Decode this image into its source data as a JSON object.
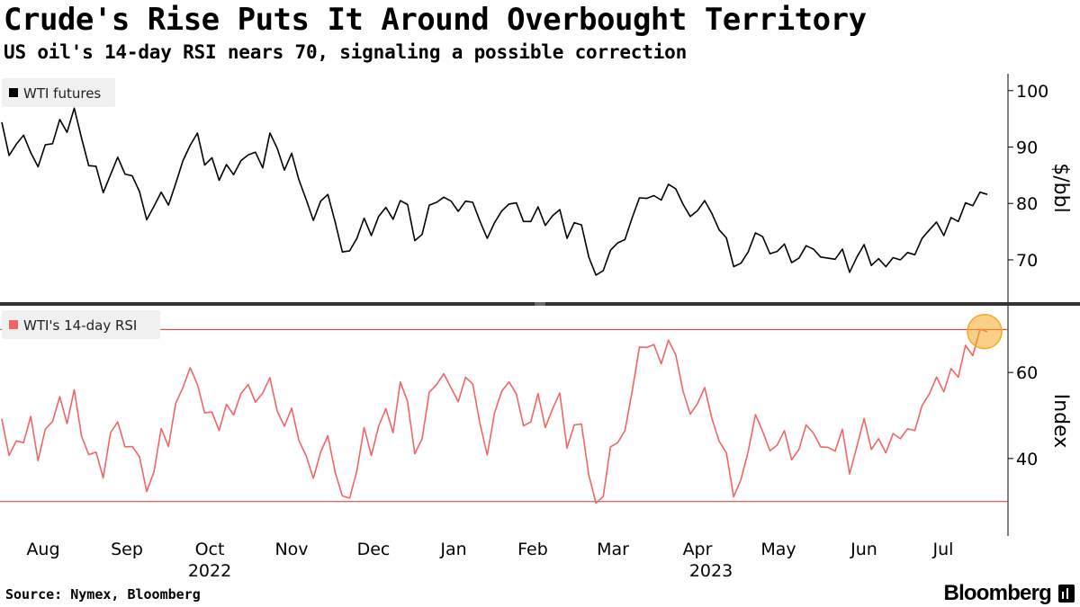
{
  "title": "Crude's Rise Puts It Around Overbought Territory",
  "subtitle": "US oil's 14-day RSI nears 70, signaling a possible correction",
  "source": "Source: Nymex, Bloomberg",
  "brand": "Bloomberg",
  "colors": {
    "price": "#000000",
    "rsi": "#f06666",
    "reference_line": "#e0302f",
    "highlight": "#f7a823",
    "legend_bg": "#f0f0f0",
    "divider": "#333333"
  },
  "chart_data": [
    {
      "type": "line",
      "legend": "WTI futures",
      "ylabel": "$/bbl",
      "ylim": [
        62.5,
        103
      ],
      "yticks": [
        70,
        80,
        90,
        100
      ],
      "series": [
        {
          "name": "WTI futures",
          "values": [
            94.4,
            88.5,
            90.5,
            92.1,
            89.0,
            86.5,
            90.4,
            90.6,
            94.9,
            92.6,
            96.9,
            91.6,
            86.7,
            86.6,
            81.9,
            85.1,
            88.2,
            85.2,
            84.9,
            82.1,
            77.1,
            79.5,
            82.0,
            79.7,
            83.5,
            87.6,
            90.3,
            92.5,
            86.8,
            88.1,
            84.1,
            86.9,
            85.1,
            87.6,
            88.6,
            89.1,
            86.3,
            92.5,
            89.8,
            85.9,
            88.9,
            84.2,
            80.7,
            77.0,
            80.4,
            81.6,
            76.7,
            71.4,
            71.6,
            73.8,
            77.4,
            74.3,
            77.7,
            79.3,
            77.2,
            80.5,
            79.8,
            73.4,
            74.5,
            79.7,
            80.2,
            81.1,
            80.4,
            78.6,
            80.4,
            80.2,
            76.8,
            73.8,
            76.6,
            78.7,
            79.9,
            80.1,
            76.8,
            76.8,
            79.4,
            76.1,
            77.8,
            78.9,
            73.8,
            76.6,
            76.2,
            70.5,
            67.3,
            68.1,
            71.7,
            73.0,
            73.6,
            77.5,
            81.0,
            80.9,
            81.4,
            80.6,
            83.4,
            82.6,
            79.9,
            77.7,
            78.7,
            80.5,
            78.2,
            75.3,
            73.9,
            68.8,
            69.4,
            71.4,
            74.8,
            74.1,
            71.1,
            71.5,
            72.8,
            69.5,
            70.3,
            72.5,
            71.9,
            70.5,
            70.3,
            70.1,
            71.9,
            67.8,
            70.5,
            72.7,
            69.0,
            70.2,
            68.8,
            70.4,
            70.0,
            71.3,
            70.9,
            73.8,
            75.3,
            76.7,
            74.3,
            77.5,
            76.8,
            80.1,
            79.6,
            82.0,
            81.6
          ]
        }
      ]
    },
    {
      "type": "line",
      "legend": "WTI's 14-day RSI",
      "ylabel": "Index",
      "ylim": [
        22,
        75.5
      ],
      "yticks": [
        40,
        60
      ],
      "reference_lines": [
        70,
        30
      ],
      "highlight_point": {
        "value": 69.5
      },
      "series": [
        {
          "name": "WTI's 14-day RSI",
          "values": [
            49.2,
            40.7,
            44.1,
            43.7,
            49.8,
            39.5,
            46.8,
            48.6,
            54.4,
            48.1,
            56.0,
            45.2,
            40.9,
            41.5,
            35.5,
            46.0,
            48.5,
            42.7,
            42.8,
            40.4,
            32.3,
            36.9,
            47.0,
            42.8,
            52.8,
            56.5,
            61.1,
            57.2,
            50.6,
            50.8,
            46.5,
            52.6,
            50.1,
            55.1,
            57.2,
            53.1,
            55.2,
            58.8,
            51.0,
            47.5,
            51.7,
            44.2,
            40.6,
            35.4,
            41.5,
            45.3,
            36.8,
            31.3,
            30.8,
            37.1,
            47.2,
            40.7,
            47.5,
            51.6,
            46.0,
            57.8,
            53.2,
            41.1,
            44.6,
            55.4,
            57.2,
            59.7,
            56.4,
            53.2,
            58.9,
            57.3,
            48.0,
            40.8,
            50.6,
            55.7,
            57.8,
            55.0,
            47.6,
            48.5,
            55.1,
            47.2,
            51.5,
            55.2,
            42.4,
            47.8,
            48.0,
            36.2,
            29.6,
            31.2,
            42.7,
            43.7,
            46.5,
            55.7,
            65.9,
            65.8,
            66.5,
            62.0,
            67.5,
            64.1,
            55.8,
            50.3,
            52.7,
            56.5,
            49.3,
            44.0,
            41.3,
            31.1,
            35.1,
            41.6,
            50.2,
            46.3,
            41.8,
            43.1,
            46.5,
            39.7,
            42.1,
            47.8,
            45.9,
            42.7,
            42.6,
            41.7,
            46.8,
            36.4,
            42.8,
            49.3,
            42.1,
            44.6,
            41.3,
            45.8,
            44.6,
            46.9,
            46.5,
            52.3,
            55.0,
            58.9,
            55.5,
            60.9,
            58.9,
            66.3,
            63.9,
            70.0,
            69.5
          ]
        }
      ]
    }
  ],
  "x_axis": {
    "months": [
      "Aug",
      "Sep",
      "Oct",
      "Nov",
      "Dec",
      "Jan",
      "Feb",
      "Mar",
      "Apr",
      "May",
      "Jun",
      "Jul"
    ],
    "years": [
      "2022",
      "2023"
    ]
  }
}
